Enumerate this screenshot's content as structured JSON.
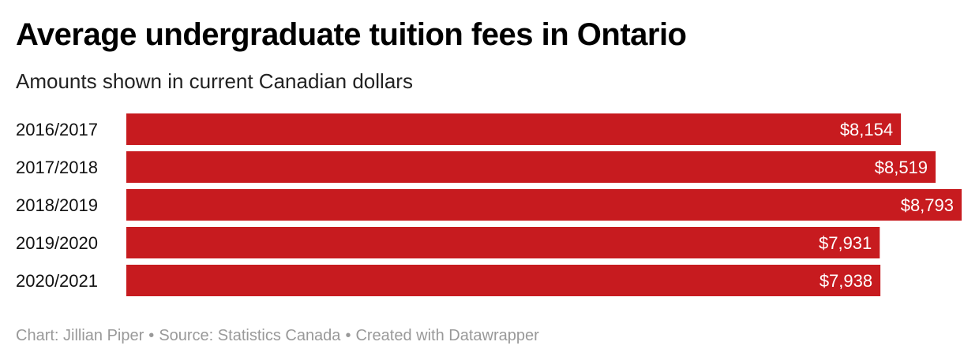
{
  "header": {
    "title": "Average undergraduate tuition fees in Ontario",
    "subtitle": "Amounts shown in current Canadian dollars"
  },
  "footer": {
    "credit": "Chart: Jillian Piper",
    "source": "Source: Statistics Canada",
    "tool": "Created with Datawrapper"
  },
  "colors": {
    "bar": "#c71b1f",
    "bar_label": "#ffffff",
    "category_label": "#111111"
  },
  "chart_data": {
    "type": "bar",
    "orientation": "horizontal",
    "title": "Average undergraduate tuition fees in Ontario",
    "subtitle": "Amounts shown in current Canadian dollars",
    "categories": [
      "2016/2017",
      "2017/2018",
      "2018/2019",
      "2019/2020",
      "2020/2021"
    ],
    "values": [
      8154,
      8519,
      8793,
      7931,
      7938
    ],
    "value_labels": [
      "$8,154",
      "$8,519",
      "$8,793",
      "$7,931",
      "$7,938"
    ],
    "xlim": [
      0,
      8793
    ],
    "grid": false,
    "legend": "none"
  }
}
